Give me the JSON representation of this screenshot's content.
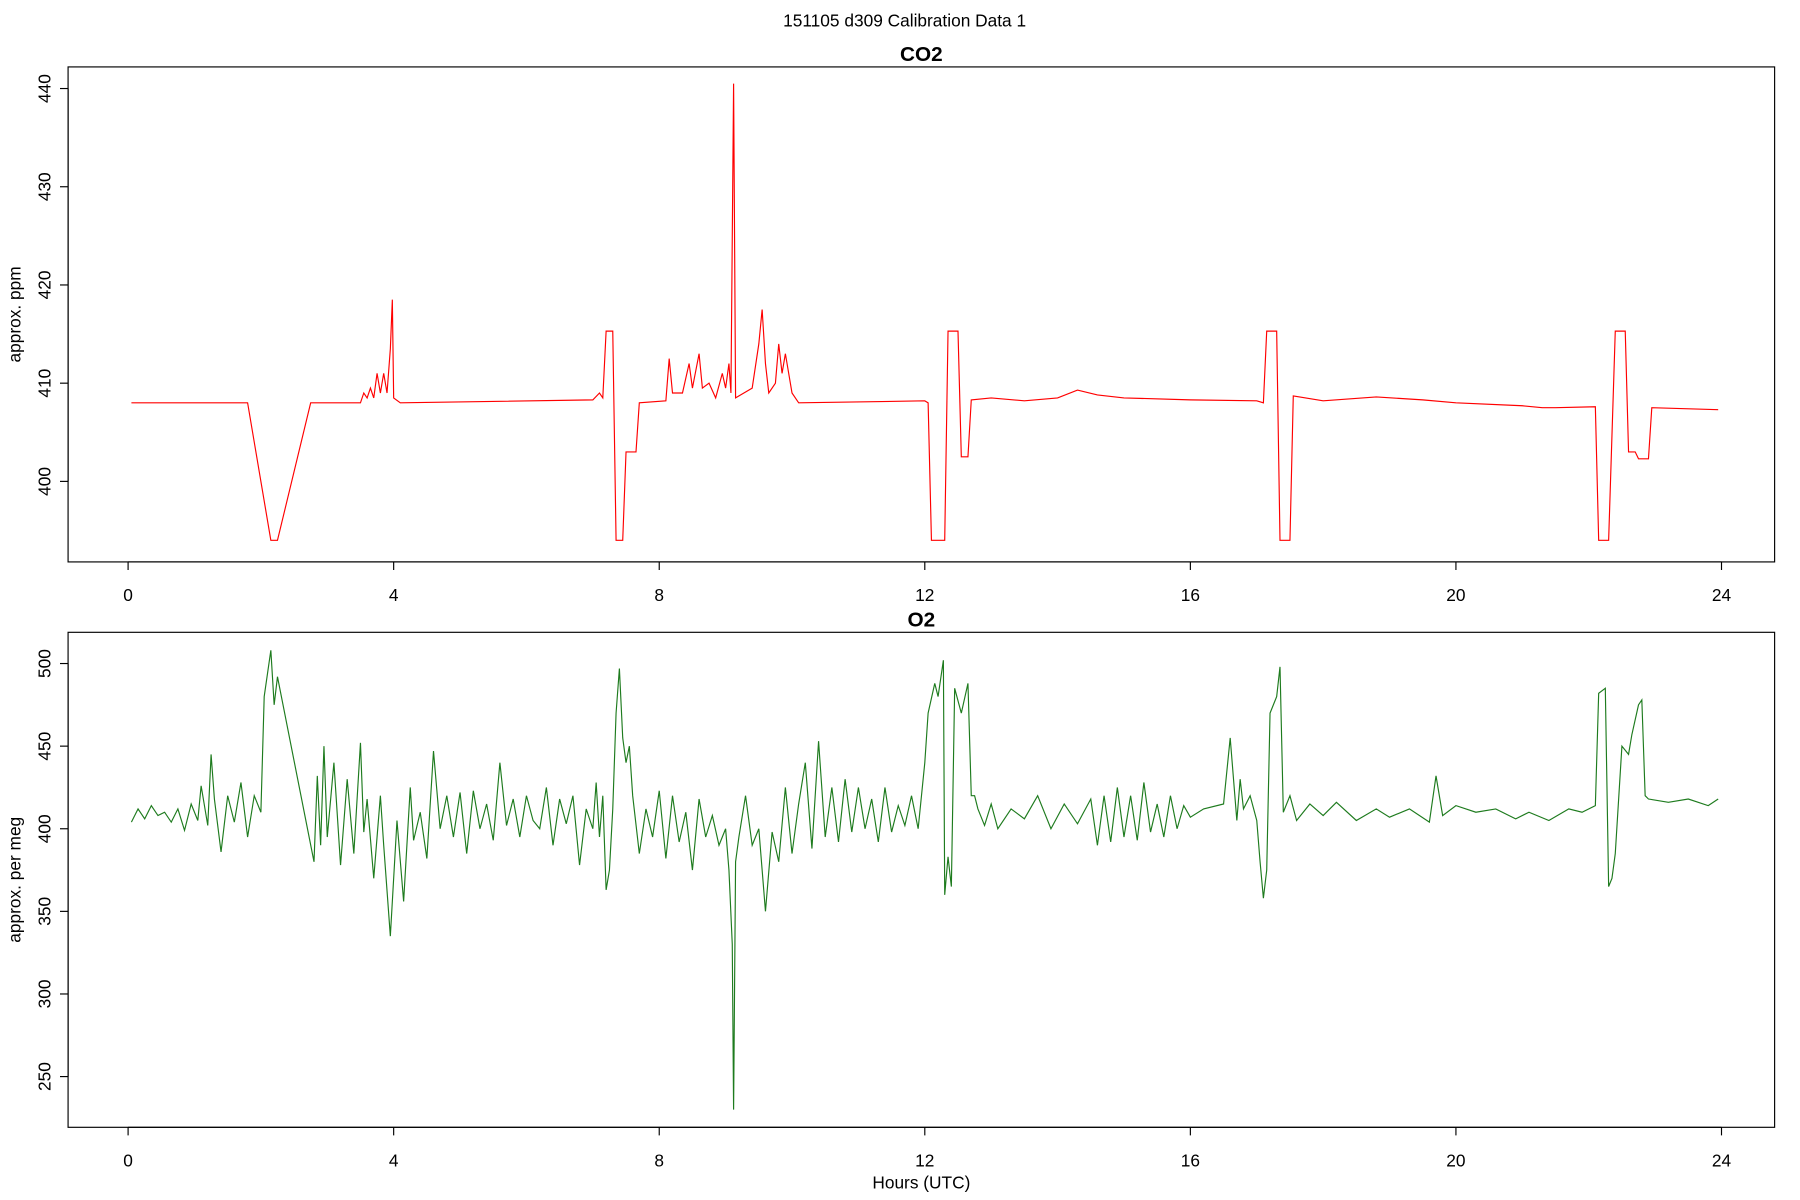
{
  "title": "151105   d309   Calibration Data 1",
  "chart_data": [
    {
      "type": "line",
      "title": "CO2",
      "ylabel": "approx. ppm",
      "xlim": [
        -0.904,
        24.8
      ],
      "xticks": [
        0,
        4,
        8,
        12,
        16,
        20,
        24
      ],
      "ylim": [
        391.8,
        442.2
      ],
      "yticks": [
        400,
        410,
        420,
        430,
        440
      ],
      "x": [
        0.05,
        1.8,
        2.15,
        2.25,
        2.75,
        3.5,
        3.55,
        3.6,
        3.65,
        3.7,
        3.75,
        3.8,
        3.85,
        3.9,
        3.95,
        3.98,
        4.0,
        4.1,
        7.0,
        7.1,
        7.15,
        7.2,
        7.3,
        7.35,
        7.45,
        7.5,
        7.65,
        7.7,
        8.1,
        8.15,
        8.2,
        8.35,
        8.45,
        8.5,
        8.6,
        8.65,
        8.75,
        8.85,
        8.95,
        9.0,
        9.05,
        9.08,
        9.12,
        9.15,
        9.4,
        9.5,
        9.55,
        9.6,
        9.65,
        9.75,
        9.8,
        9.85,
        9.9,
        10.0,
        10.1,
        12.0,
        12.05,
        12.1,
        12.3,
        12.35,
        12.5,
        12.55,
        12.65,
        12.7,
        13.0,
        13.5,
        14.0,
        14.3,
        14.6,
        15.0,
        16.0,
        17.0,
        17.1,
        17.15,
        17.3,
        17.35,
        17.5,
        17.55,
        18.0,
        18.8,
        19.5,
        20.0,
        21.0,
        21.3,
        21.5,
        22.1,
        22.15,
        22.3,
        22.4,
        22.55,
        22.6,
        22.7,
        22.75,
        22.9,
        22.95,
        23.95
      ],
      "series": [
        {
          "color": "#ff0000",
          "values": [
            408,
            408,
            394,
            394,
            408,
            408,
            409,
            408.5,
            409.5,
            408.5,
            411,
            409,
            411,
            409,
            413.5,
            418.5,
            408.5,
            408,
            408.3,
            409,
            408.5,
            415.3,
            415.3,
            394,
            394,
            403,
            403,
            408,
            408.2,
            412.5,
            409,
            409,
            412,
            409.5,
            413,
            409.5,
            410,
            408.5,
            411,
            409.5,
            412,
            409,
            440.5,
            408.5,
            409.5,
            414,
            417.5,
            412,
            409,
            410,
            414,
            411,
            413,
            409,
            408,
            408.2,
            408,
            394,
            394,
            415.3,
            415.3,
            402.5,
            402.5,
            408.3,
            408.5,
            408.2,
            408.5,
            409.3,
            408.8,
            408.5,
            408.3,
            408.2,
            408,
            415.3,
            415.3,
            394,
            394,
            408.7,
            408.2,
            408.6,
            408.3,
            408,
            407.7,
            407.5,
            407.5,
            407.6,
            394,
            394,
            415.3,
            415.3,
            403,
            403,
            402.3,
            402.3,
            407.5,
            407.3
          ]
        }
      ]
    },
    {
      "type": "line",
      "title": "O2",
      "ylabel": "approx. per meg",
      "xlabel": "Hours (UTC)",
      "xlim": [
        -0.904,
        24.8
      ],
      "xticks": [
        0,
        4,
        8,
        12,
        16,
        20,
        24
      ],
      "ylim": [
        219.3,
        518.9
      ],
      "yticks": [
        250,
        300,
        350,
        400,
        450,
        500
      ],
      "x": [
        0.05,
        0.15,
        0.25,
        0.35,
        0.45,
        0.55,
        0.65,
        0.75,
        0.85,
        0.95,
        1.05,
        1.1,
        1.2,
        1.25,
        1.3,
        1.4,
        1.5,
        1.6,
        1.7,
        1.8,
        1.9,
        2.0,
        2.05,
        2.15,
        2.2,
        2.25,
        2.8,
        2.85,
        2.9,
        2.95,
        3.0,
        3.1,
        3.2,
        3.3,
        3.4,
        3.5,
        3.55,
        3.6,
        3.7,
        3.8,
        3.85,
        3.95,
        4.05,
        4.15,
        4.25,
        4.3,
        4.4,
        4.5,
        4.6,
        4.7,
        4.8,
        4.9,
        5.0,
        5.1,
        5.2,
        5.3,
        5.4,
        5.5,
        5.6,
        5.7,
        5.8,
        5.9,
        6.0,
        6.1,
        6.2,
        6.3,
        6.4,
        6.5,
        6.6,
        6.7,
        6.8,
        6.9,
        7.0,
        7.05,
        7.1,
        7.15,
        7.2,
        7.25,
        7.3,
        7.35,
        7.4,
        7.45,
        7.5,
        7.55,
        7.6,
        7.7,
        7.8,
        7.9,
        8.0,
        8.1,
        8.2,
        8.3,
        8.4,
        8.5,
        8.6,
        8.7,
        8.8,
        8.9,
        9.0,
        9.05,
        9.1,
        9.12,
        9.15,
        9.2,
        9.3,
        9.4,
        9.5,
        9.6,
        9.7,
        9.8,
        9.9,
        10.0,
        10.1,
        10.2,
        10.3,
        10.4,
        10.5,
        10.6,
        10.7,
        10.8,
        10.9,
        11.0,
        11.1,
        11.2,
        11.3,
        11.4,
        11.5,
        11.6,
        11.7,
        11.8,
        11.9,
        12.0,
        12.05,
        12.15,
        12.2,
        12.28,
        12.3,
        12.35,
        12.4,
        12.45,
        12.55,
        12.65,
        12.7,
        12.75,
        12.8,
        12.9,
        13.0,
        13.1,
        13.3,
        13.5,
        13.7,
        13.9,
        14.1,
        14.3,
        14.5,
        14.6,
        14.7,
        14.8,
        14.9,
        15.0,
        15.1,
        15.2,
        15.3,
        15.4,
        15.5,
        15.6,
        15.7,
        15.8,
        15.9,
        16.0,
        16.2,
        16.5,
        16.6,
        16.7,
        16.75,
        16.8,
        16.9,
        17.0,
        17.05,
        17.1,
        17.15,
        17.2,
        17.3,
        17.35,
        17.4,
        17.5,
        17.6,
        17.8,
        18.0,
        18.2,
        18.5,
        18.8,
        19.0,
        19.3,
        19.6,
        19.7,
        19.8,
        20.0,
        20.3,
        20.6,
        20.9,
        21.1,
        21.4,
        21.7,
        21.9,
        22.1,
        22.15,
        22.25,
        22.3,
        22.35,
        22.4,
        22.5,
        22.6,
        22.65,
        22.75,
        22.8,
        22.85,
        22.9,
        23.2,
        23.5,
        23.8,
        23.95
      ],
      "series": [
        {
          "color": "#1e7b1e",
          "values": [
            404,
            412,
            406,
            414,
            408,
            410,
            404,
            412,
            399,
            415,
            405,
            426,
            402,
            445,
            418,
            386,
            420,
            404,
            428,
            395,
            420,
            410,
            480,
            508,
            475,
            492,
            380,
            432,
            390,
            450,
            395,
            440,
            378,
            430,
            385,
            452,
            398,
            418,
            370,
            420,
            390,
            335,
            405,
            356,
            425,
            393,
            410,
            382,
            447,
            400,
            420,
            395,
            422,
            385,
            423,
            400,
            415,
            393,
            440,
            402,
            418,
            395,
            420,
            405,
            400,
            425,
            390,
            418,
            403,
            420,
            378,
            412,
            400,
            428,
            395,
            420,
            363,
            375,
            412,
            470,
            497,
            455,
            440,
            450,
            420,
            385,
            412,
            395,
            423,
            382,
            420,
            392,
            410,
            375,
            418,
            395,
            408,
            390,
            400,
            375,
            330,
            230,
            380,
            395,
            420,
            390,
            400,
            350,
            398,
            380,
            425,
            385,
            415,
            440,
            388,
            453,
            395,
            425,
            392,
            430,
            398,
            425,
            400,
            418,
            392,
            425,
            398,
            414,
            402,
            420,
            400,
            440,
            470,
            488,
            480,
            502,
            360,
            383,
            365,
            485,
            470,
            488,
            420,
            420,
            412,
            402,
            415,
            400,
            412,
            406,
            420,
            400,
            415,
            403,
            418,
            390,
            420,
            392,
            425,
            395,
            420,
            393,
            428,
            398,
            415,
            395,
            420,
            400,
            414,
            407,
            412,
            415,
            455,
            405,
            430,
            412,
            420,
            405,
            380,
            358,
            375,
            470,
            480,
            498,
            410,
            420,
            405,
            415,
            408,
            416,
            405,
            412,
            407,
            412,
            404,
            432,
            408,
            414,
            410,
            412,
            406,
            410,
            405,
            412,
            410,
            414,
            482,
            485,
            365,
            370,
            385,
            450,
            445,
            457,
            475,
            478,
            420,
            418,
            416,
            418,
            414,
            418
          ]
        }
      ]
    }
  ]
}
